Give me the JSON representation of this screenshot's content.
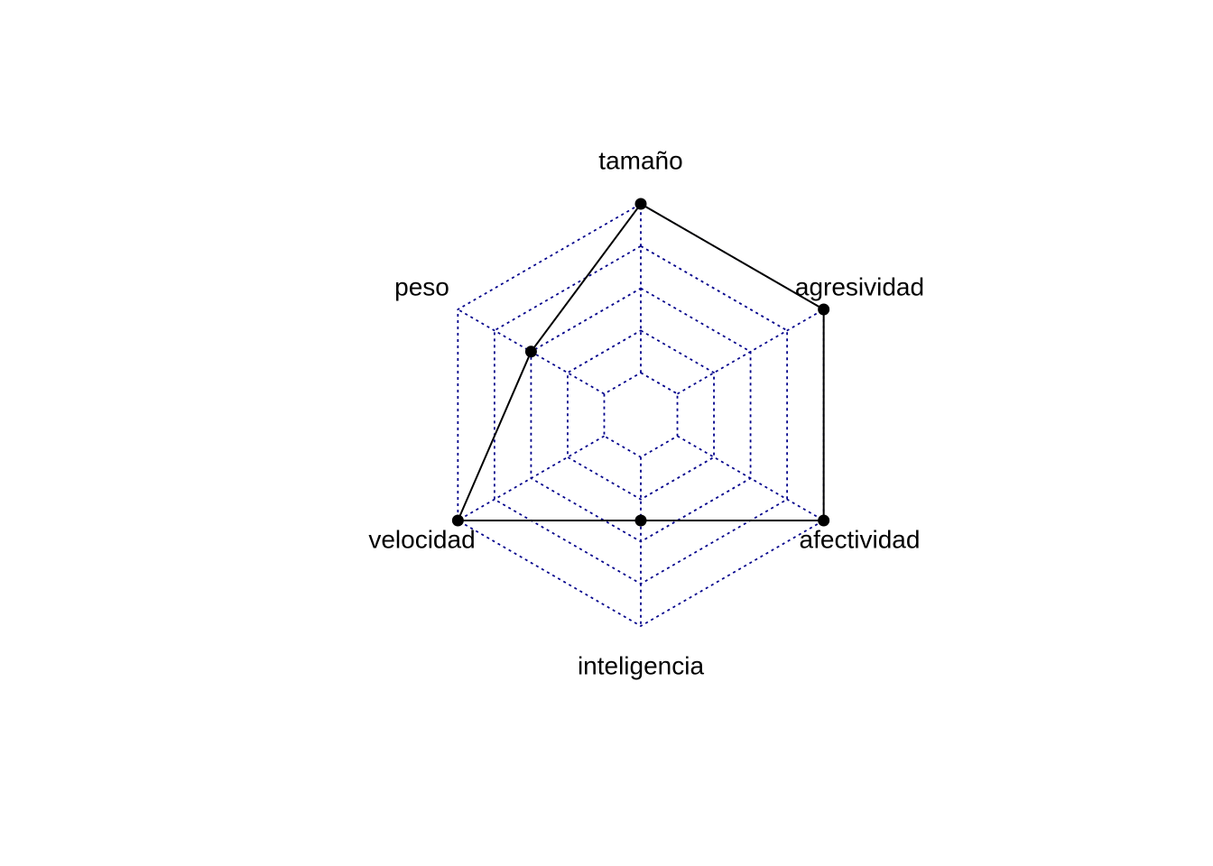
{
  "chart_data": {
    "type": "radar",
    "axes": [
      "tamaño",
      "agresividad",
      "afectividad",
      "inteligencia",
      "velocidad",
      "peso"
    ],
    "range": [
      0,
      1
    ],
    "grid_levels": 5,
    "grid": true,
    "series": [
      {
        "values": [
          1.0,
          1.0,
          1.0,
          0.5,
          1.0,
          0.6
        ]
      }
    ],
    "colors": {
      "grid": "#00008b",
      "series": "#000000"
    }
  }
}
